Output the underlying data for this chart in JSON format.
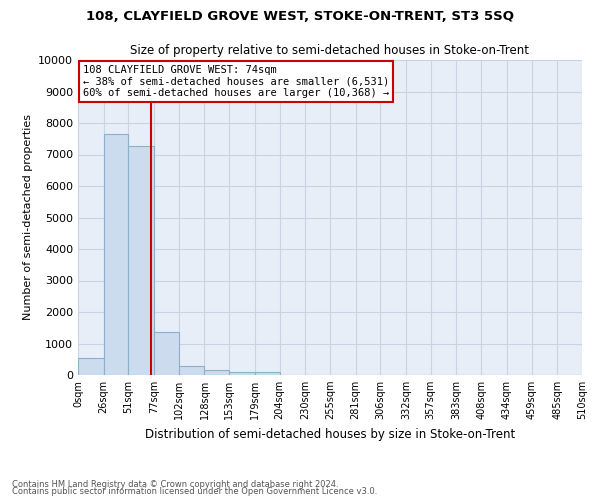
{
  "title": "108, CLAYFIELD GROVE WEST, STOKE-ON-TRENT, ST3 5SQ",
  "subtitle": "Size of property relative to semi-detached houses in Stoke-on-Trent",
  "xlabel": "Distribution of semi-detached houses by size in Stoke-on-Trent",
  "ylabel": "Number of semi-detached properties",
  "bin_labels": [
    "0sqm",
    "26sqm",
    "51sqm",
    "77sqm",
    "102sqm",
    "128sqm",
    "153sqm",
    "179sqm",
    "204sqm",
    "230sqm",
    "255sqm",
    "281sqm",
    "306sqm",
    "332sqm",
    "357sqm",
    "383sqm",
    "408sqm",
    "434sqm",
    "459sqm",
    "485sqm",
    "510sqm"
  ],
  "bar_values": [
    530,
    7650,
    7280,
    1350,
    300,
    160,
    110,
    85,
    0,
    0,
    0,
    0,
    0,
    0,
    0,
    0,
    0,
    0,
    0,
    0
  ],
  "bar_color": "#ccdcee",
  "bar_edge_color": "#8ab0cc",
  "property_line_x": 74,
  "annotation_text": "108 CLAYFIELD GROVE WEST: 74sqm\n← 38% of semi-detached houses are smaller (6,531)\n60% of semi-detached houses are larger (10,368) →",
  "annotation_box_color": "#ffffff",
  "annotation_box_edge": "#cc0000",
  "property_line_color": "#cc0000",
  "ylim": [
    0,
    10000
  ],
  "yticks": [
    0,
    1000,
    2000,
    3000,
    4000,
    5000,
    6000,
    7000,
    8000,
    9000,
    10000
  ],
  "ytick_labels": [
    "0",
    "1000",
    "2000",
    "3000",
    "4000",
    "5000",
    "6000",
    "7000",
    "8000",
    "9000",
    "10000"
  ],
  "grid_color": "#c8d4e4",
  "bg_color": "#e8eef8",
  "footer1": "Contains HM Land Registry data © Crown copyright and database right 2024.",
  "footer2": "Contains public sector information licensed under the Open Government Licence v3.0.",
  "bin_edges": [
    0,
    26,
    51,
    77,
    102,
    128,
    153,
    179,
    204,
    230,
    255,
    281,
    306,
    332,
    357,
    383,
    408,
    434,
    459,
    485,
    510
  ]
}
